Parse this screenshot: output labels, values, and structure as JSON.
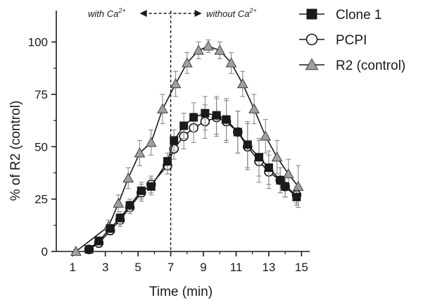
{
  "chart_data": {
    "type": "line",
    "xlabel": "Time (min)",
    "ylabel": "% of R2 (control)",
    "xlim": [
      0,
      15.5
    ],
    "ylim": [
      0,
      115
    ],
    "xticks": [
      1,
      3,
      5,
      7,
      9,
      11,
      13,
      15
    ],
    "yticks": [
      0,
      25,
      50,
      75,
      100
    ],
    "grid": false,
    "legend_position": "top-right",
    "annotations": {
      "left_label": "with Ca",
      "left_sup": "2+",
      "right_label": "without Ca",
      "right_sup": "2+",
      "divider_x": 7
    },
    "series": [
      {
        "name": "Clone 1",
        "marker": "square-filled",
        "color": "#1a1a1a",
        "points": [
          {
            "x": 2.0,
            "y": 1,
            "err": 1.5
          },
          {
            "x": 2.6,
            "y": 5,
            "err": 2
          },
          {
            "x": 3.3,
            "y": 11,
            "err": 2
          },
          {
            "x": 3.9,
            "y": 16,
            "err": 3
          },
          {
            "x": 4.5,
            "y": 22,
            "err": 3
          },
          {
            "x": 5.2,
            "y": 29,
            "err": 4
          },
          {
            "x": 5.8,
            "y": 31,
            "err": 4
          },
          {
            "x": 6.8,
            "y": 43,
            "err": 4
          },
          {
            "x": 7.2,
            "y": 53,
            "err": 5
          },
          {
            "x": 7.8,
            "y": 60,
            "err": 6
          },
          {
            "x": 8.4,
            "y": 64,
            "err": 7
          },
          {
            "x": 9.1,
            "y": 66,
            "err": 8
          },
          {
            "x": 9.8,
            "y": 65,
            "err": 9
          },
          {
            "x": 10.4,
            "y": 63,
            "err": 10
          },
          {
            "x": 11.1,
            "y": 57,
            "err": 10
          },
          {
            "x": 11.7,
            "y": 51,
            "err": 11
          },
          {
            "x": 12.4,
            "y": 45,
            "err": 9
          },
          {
            "x": 13.0,
            "y": 40,
            "err": 8
          },
          {
            "x": 13.7,
            "y": 34,
            "err": 6
          },
          {
            "x": 14.0,
            "y": 31,
            "err": 5
          },
          {
            "x": 14.7,
            "y": 26,
            "err": 4
          }
        ]
      },
      {
        "name": "PCPI",
        "marker": "circle-open",
        "color": "#1a1a1a",
        "points": [
          {
            "x": 2.0,
            "y": 1,
            "err": 1.5
          },
          {
            "x": 2.6,
            "y": 4,
            "err": 2
          },
          {
            "x": 3.3,
            "y": 10,
            "err": 2
          },
          {
            "x": 3.9,
            "y": 15,
            "err": 3
          },
          {
            "x": 4.5,
            "y": 21,
            "err": 3
          },
          {
            "x": 5.2,
            "y": 28,
            "err": 4
          },
          {
            "x": 5.8,
            "y": 32,
            "err": 4
          },
          {
            "x": 6.8,
            "y": 41,
            "err": 4
          },
          {
            "x": 7.2,
            "y": 49,
            "err": 5
          },
          {
            "x": 7.8,
            "y": 55,
            "err": 6
          },
          {
            "x": 8.4,
            "y": 59,
            "err": 7
          },
          {
            "x": 9.1,
            "y": 62,
            "err": 8
          },
          {
            "x": 9.8,
            "y": 64,
            "err": 9
          },
          {
            "x": 10.4,
            "y": 62,
            "err": 10
          },
          {
            "x": 11.1,
            "y": 57,
            "err": 10
          },
          {
            "x": 11.7,
            "y": 50,
            "err": 11
          },
          {
            "x": 12.4,
            "y": 43,
            "err": 10
          },
          {
            "x": 13.0,
            "y": 38,
            "err": 8
          },
          {
            "x": 13.7,
            "y": 34,
            "err": 6
          },
          {
            "x": 14.0,
            "y": 31,
            "err": 5
          },
          {
            "x": 14.7,
            "y": 27,
            "err": 4
          }
        ]
      },
      {
        "name": "R2 (control)",
        "marker": "triangle-filled",
        "color": "#a0a0a0",
        "points": [
          {
            "x": 1.2,
            "y": 0,
            "err": 1
          },
          {
            "x": 3.2,
            "y": 12,
            "err": 3
          },
          {
            "x": 3.8,
            "y": 23,
            "err": 4
          },
          {
            "x": 4.4,
            "y": 35,
            "err": 5
          },
          {
            "x": 5.1,
            "y": 47,
            "err": 6
          },
          {
            "x": 5.8,
            "y": 52,
            "err": 6
          },
          {
            "x": 6.5,
            "y": 68,
            "err": 7
          },
          {
            "x": 7.3,
            "y": 80,
            "err": 6
          },
          {
            "x": 8.0,
            "y": 90,
            "err": 5
          },
          {
            "x": 8.7,
            "y": 96,
            "err": 4
          },
          {
            "x": 9.3,
            "y": 98,
            "err": 3
          },
          {
            "x": 10.0,
            "y": 96,
            "err": 4
          },
          {
            "x": 10.7,
            "y": 90,
            "err": 5
          },
          {
            "x": 11.4,
            "y": 80,
            "err": 6
          },
          {
            "x": 12.1,
            "y": 68,
            "err": 7
          },
          {
            "x": 12.8,
            "y": 55,
            "err": 8
          },
          {
            "x": 13.5,
            "y": 45,
            "err": 8
          },
          {
            "x": 14.2,
            "y": 37,
            "err": 7
          },
          {
            "x": 14.8,
            "y": 31,
            "err": 10
          }
        ]
      }
    ]
  }
}
